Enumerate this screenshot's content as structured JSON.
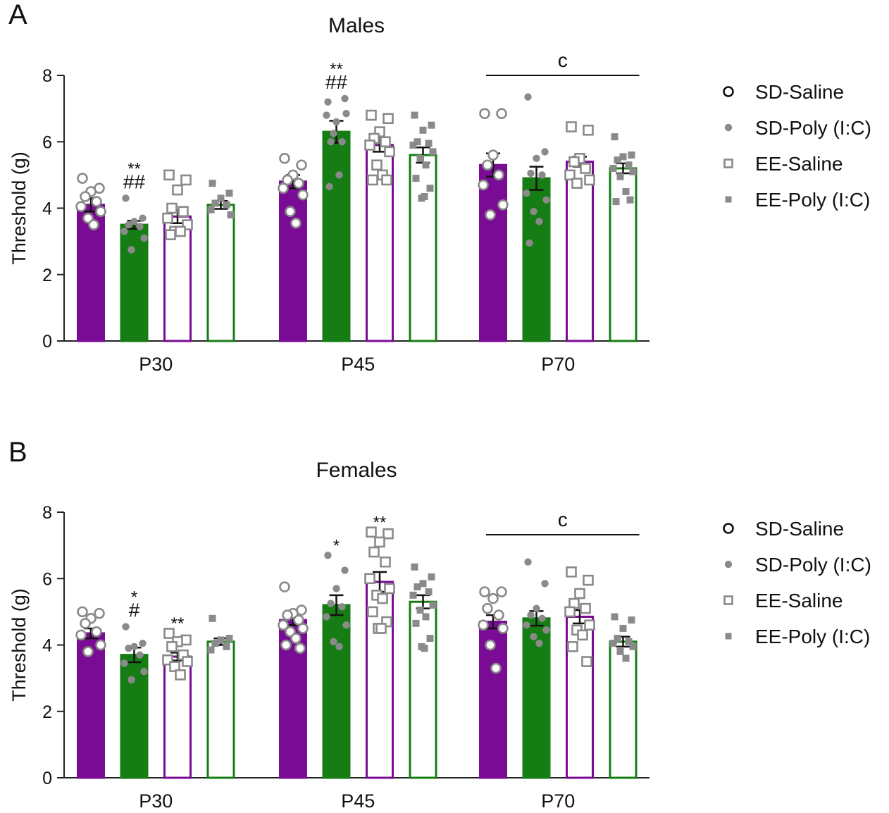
{
  "colors": {
    "purple": "#7a0b94",
    "green": "#157d14",
    "point_gray": "#8a8a8a",
    "axis": "#222222"
  },
  "chart_data": [
    {
      "type": "bar",
      "panel_letter": "A",
      "title": "Males",
      "ylabel": "Threshold (g)",
      "ylim": [
        0,
        8
      ],
      "yticks": [
        "0",
        "2",
        "4",
        "6",
        "8"
      ],
      "categories": [
        "P30",
        "P45",
        "P70"
      ],
      "series": [
        {
          "name": "SD-Saline",
          "values": [
            4.1,
            4.8,
            5.3
          ],
          "sem": [
            0.2,
            0.2,
            0.35
          ],
          "points": [
            [
              4.9,
              4.6,
              4.5,
              4.35,
              4.2,
              4.05,
              3.9,
              3.7,
              3.5
            ],
            [
              5.5,
              5.3,
              5.0,
              4.85,
              4.75,
              4.6,
              4.4,
              3.9,
              3.55
            ],
            [
              6.85,
              6.85,
              5.6,
              5.3,
              5.0,
              4.7,
              4.1,
              3.8
            ]
          ]
        },
        {
          "name": "SD-Poly (I:C)",
          "values": [
            3.5,
            6.3,
            4.9
          ],
          "sem": [
            0.12,
            0.33,
            0.35
          ],
          "points": [
            [
              4.3,
              3.7,
              3.6,
              3.5,
              3.45,
              3.3,
              3.1,
              2.75
            ],
            [
              7.2,
              7.3,
              6.6,
              6.0,
              6.0,
              6.8,
              6.85,
              6.25,
              5.0,
              4.65
            ],
            [
              7.35,
              5.7,
              5.5,
              5.05,
              5.0,
              4.45,
              4.25,
              3.9,
              3.6,
              2.95
            ]
          ]
        },
        {
          "name": "EE-Saline",
          "values": [
            3.75,
            5.9,
            5.4
          ],
          "sem": [
            0.2,
            0.2,
            0.15
          ],
          "points": [
            [
              5.0,
              4.85,
              4.55,
              4.0,
              3.9,
              3.7,
              3.5,
              3.3,
              3.3,
              3.2
            ],
            [
              6.8,
              6.7,
              6.3,
              6.1,
              6.0,
              5.9,
              5.7,
              5.3,
              5.0,
              4.85,
              4.85
            ],
            [
              6.45,
              6.35,
              5.5,
              5.4,
              5.2,
              5.0,
              4.85,
              4.75
            ]
          ]
        },
        {
          "name": "EE-Poly (I:C)",
          "values": [
            4.1,
            5.6,
            5.2
          ],
          "sem": [
            0.12,
            0.23,
            0.15
          ],
          "points": [
            [
              4.75,
              4.45,
              4.3,
              4.15,
              4.1,
              3.95,
              3.8
            ],
            [
              6.8,
              6.5,
              6.35,
              6.0,
              5.95,
              5.9,
              5.7,
              5.5,
              5.3,
              4.9,
              4.6,
              4.3,
              4.35
            ],
            [
              6.15,
              5.6,
              5.55,
              5.45,
              5.3,
              5.2,
              5.1,
              4.95,
              4.5,
              4.2,
              4.25
            ]
          ]
        }
      ],
      "annotations": [
        {
          "category": "P30",
          "series": "SD-Poly (I:C)",
          "lines": [
            "**",
            "##"
          ]
        },
        {
          "category": "P45",
          "series": "SD-Poly (I:C)",
          "lines": [
            "**",
            "##"
          ]
        }
      ],
      "bracket": {
        "category": "P70",
        "label": "c"
      }
    },
    {
      "type": "bar",
      "panel_letter": "B",
      "title": "Females",
      "ylabel": "Threshold (g)",
      "ylim": [
        0,
        8
      ],
      "yticks": [
        "0",
        "2",
        "4",
        "6",
        "8"
      ],
      "categories": [
        "P30",
        "P45",
        "P70"
      ],
      "series": [
        {
          "name": "SD-Saline",
          "values": [
            4.35,
            4.75,
            4.7
          ],
          "sem": [
            0.15,
            0.15,
            0.2
          ],
          "points": [
            [
              5.0,
              4.95,
              4.8,
              4.65,
              4.4,
              4.3,
              4.0,
              3.8
            ],
            [
              5.75,
              5.05,
              4.95,
              4.9,
              4.75,
              4.6,
              4.5,
              4.4,
              4.2,
              4.0,
              3.9
            ],
            [
              5.6,
              5.6,
              5.4,
              5.1,
              4.9,
              4.6,
              4.5,
              4.0,
              3.3
            ]
          ]
        },
        {
          "name": "SD-Poly (I:C)",
          "values": [
            3.7,
            5.2,
            4.8
          ],
          "sem": [
            0.22,
            0.3,
            0.22
          ],
          "points": [
            [
              4.55,
              4.05,
              3.95,
              3.9,
              3.7,
              3.45,
              3.2,
              2.95
            ],
            [
              6.7,
              6.25,
              5.7,
              5.25,
              5.15,
              4.85,
              4.6,
              4.1,
              3.95
            ],
            [
              6.5,
              5.85,
              5.1,
              4.9,
              4.8,
              4.6,
              4.45,
              4.25,
              4.05
            ]
          ]
        },
        {
          "name": "EE-Saline",
          "values": [
            3.65,
            5.9,
            4.85
          ],
          "sem": [
            0.12,
            0.3,
            0.2
          ],
          "points": [
            [
              4.35,
              4.15,
              4.1,
              3.95,
              3.7,
              3.55,
              3.5,
              3.35,
              3.1
            ],
            [
              7.4,
              7.35,
              7.1,
              6.8,
              6.5,
              6.0,
              5.7,
              5.5,
              5.4,
              5.0,
              4.7,
              4.5,
              4.5
            ],
            [
              6.2,
              5.95,
              5.55,
              5.25,
              5.1,
              5.0,
              4.6,
              4.45,
              4.3,
              3.95,
              3.5
            ]
          ]
        },
        {
          "name": "EE-Poly (I:C)",
          "values": [
            4.1,
            5.3,
            4.1
          ],
          "sem": [
            0.1,
            0.2,
            0.15
          ],
          "points": [
            [
              4.8,
              4.2,
              4.15,
              4.05,
              3.95,
              3.85
            ],
            [
              6.35,
              6.05,
              5.85,
              5.75,
              5.6,
              5.5,
              5.2,
              5.05,
              4.85,
              4.65,
              4.2,
              3.95,
              3.9
            ],
            [
              4.85,
              4.75,
              4.5,
              4.2,
              4.1,
              4.05,
              3.95,
              3.8,
              3.6
            ]
          ]
        }
      ],
      "annotations": [
        {
          "category": "P30",
          "series": "SD-Poly (I:C)",
          "lines": [
            "*",
            "#"
          ]
        },
        {
          "category": "P30",
          "series": "EE-Saline",
          "lines": [
            "**"
          ]
        },
        {
          "category": "P45",
          "series": "SD-Poly (I:C)",
          "lines": [
            "*"
          ]
        },
        {
          "category": "P45",
          "series": "EE-Saline",
          "lines": [
            "**"
          ]
        }
      ],
      "bracket": {
        "category": "P70",
        "label": "c"
      }
    }
  ]
}
